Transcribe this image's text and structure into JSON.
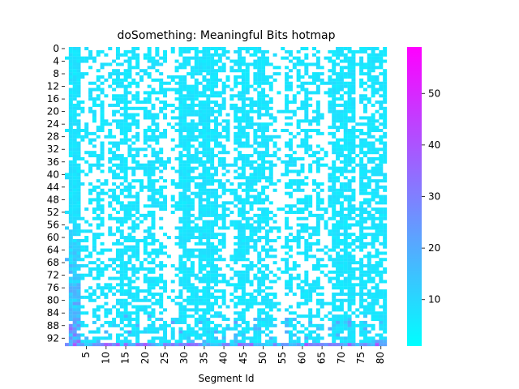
{
  "chart_data": {
    "type": "heatmap",
    "title": "doSomething: Meaningful Bits hotmap",
    "xlabel": "Segment Id",
    "ylabel": "",
    "x_range": [
      0,
      82
    ],
    "y_range": [
      0,
      95
    ],
    "x_ticks": [
      "5",
      "10",
      "15",
      "20",
      "25",
      "30",
      "35",
      "40",
      "45",
      "50",
      "55",
      "60",
      "65",
      "70",
      "75",
      "80"
    ],
    "y_ticks": [
      "0",
      "4",
      "8",
      "12",
      "16",
      "20",
      "24",
      "28",
      "32",
      "36",
      "40",
      "44",
      "48",
      "52",
      "56",
      "60",
      "64",
      "68",
      "72",
      "76",
      "80",
      "84",
      "88",
      "92"
    ],
    "colorbar": {
      "range": [
        1,
        59
      ],
      "ticks": [
        "10",
        "20",
        "30",
        "40",
        "50"
      ],
      "colormap": "cool"
    },
    "colors": {
      "low": "#00ffff",
      "high": "#ff00ff",
      "empty": "#ffffff"
    },
    "estimated_values": {
      "column_fill_probability": [
        0.1,
        0.95,
        0.95,
        0.9,
        0.3,
        0.3,
        0.4,
        0.4,
        0.5,
        0.5,
        0.3,
        0.4,
        0.5,
        0.6,
        0.7,
        0.7,
        0.6,
        0.5,
        0.6,
        0.3,
        0.5,
        0.6,
        0.7,
        0.5,
        0.4,
        0.4,
        0.1,
        0.3,
        0.3,
        0.8,
        0.9,
        0.8,
        0.7,
        0.6,
        0.7,
        0.9,
        0.9,
        0.8,
        0.7,
        0.6,
        0.6,
        0.3,
        0.3,
        0.6,
        0.7,
        0.8,
        0.6,
        0.5,
        0.6,
        0.8,
        0.7,
        0.6,
        0.5,
        0.3,
        0.2,
        0.1,
        0.6,
        0.6,
        0.4,
        0.5,
        0.4,
        0.6,
        0.5,
        0.4,
        0.7,
        0.3,
        0.2,
        0.4,
        0.8,
        0.8,
        0.7,
        0.8,
        0.9,
        0.7,
        0.2,
        0.8,
        0.6,
        0.7,
        0.7,
        0.6,
        0.7,
        0.8
      ],
      "typical_value": 5,
      "max_value": 59,
      "bottom_row_value_range": [
        10,
        40
      ],
      "left_columns_rising_to_max_near_bottom": true
    }
  }
}
